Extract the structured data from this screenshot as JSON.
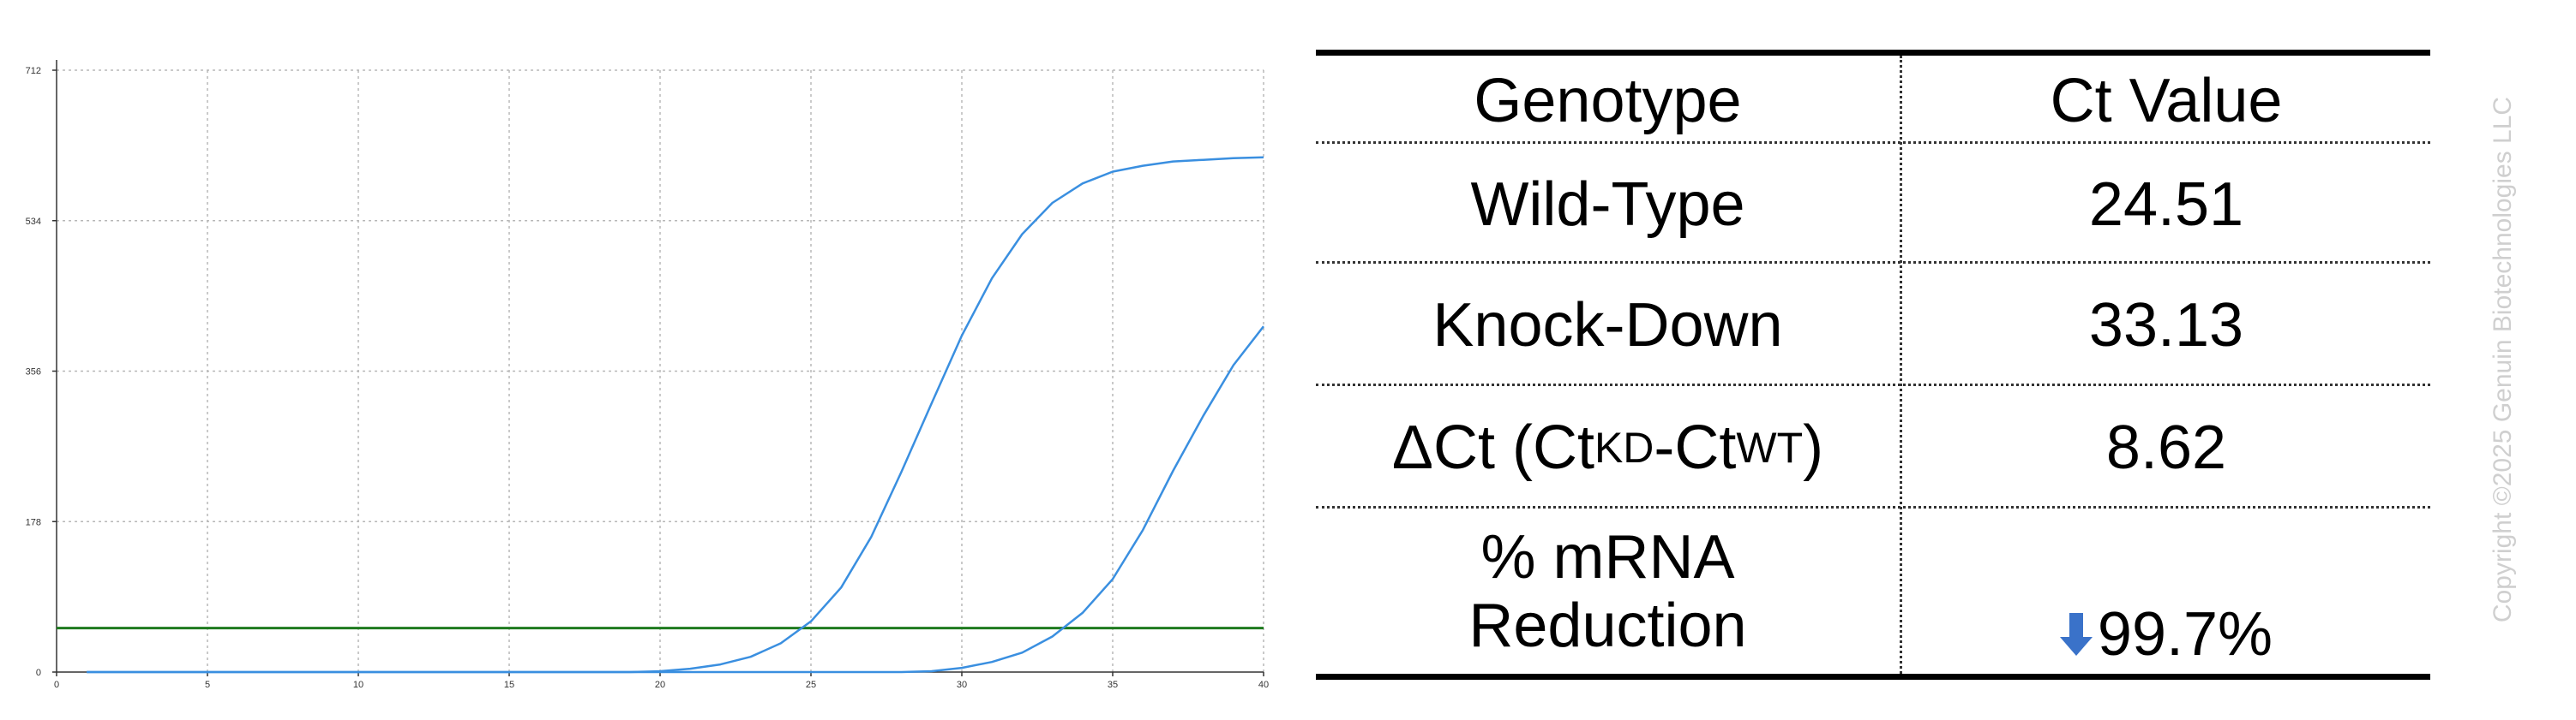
{
  "chart_data": {
    "type": "line",
    "title": "",
    "xlabel": "",
    "ylabel": "",
    "xlim": [
      0,
      40
    ],
    "ylim": [
      0,
      712
    ],
    "x_ticks": [
      0,
      5,
      10,
      15,
      20,
      25,
      30,
      35,
      40
    ],
    "y_ticks": [
      0,
      178,
      356,
      534,
      712
    ],
    "grid": true,
    "threshold": 52,
    "colors": {
      "series": "#3a8fe0",
      "threshold": "#1e7a1e",
      "grid": "#b8b8b8",
      "axis": "#333333"
    },
    "series": [
      {
        "x": [
          1,
          19,
          20,
          21,
          22,
          23,
          24,
          25,
          26,
          27,
          28,
          29,
          30,
          31,
          32,
          33,
          34,
          35,
          36,
          37,
          38,
          39,
          40
        ],
        "values": [
          0,
          0,
          1,
          4,
          9,
          18,
          34,
          60,
          100,
          160,
          237,
          318,
          398,
          466,
          518,
          555,
          578,
          592,
          599,
          604,
          606,
          608,
          609
        ]
      },
      {
        "x": [
          1,
          28,
          29,
          30,
          31,
          32,
          33,
          34,
          35,
          36,
          37,
          38,
          39,
          40
        ],
        "values": [
          0,
          0,
          1,
          5,
          12,
          23,
          42,
          70,
          110,
          168,
          238,
          303,
          363,
          409
        ]
      }
    ]
  },
  "table": {
    "headers": {
      "genotype": "Genotype",
      "ct": "Ct Value"
    },
    "rows": [
      {
        "label": "Wild-Type",
        "value": "24.51"
      },
      {
        "label": "Knock-Down",
        "value": "33.13"
      }
    ],
    "delta": {
      "lead": "ΔCt (Ct",
      "sub_kd": "KD",
      "mid": "-Ct",
      "sub_wt": "WT",
      "close": ")",
      "value": "8.62"
    },
    "reduction": {
      "label_line1": "% mRNA",
      "label_line2": "Reduction",
      "value": "99.7%",
      "arrow_icon": "down-arrow-icon",
      "arrow_color": "#3a72c9"
    }
  },
  "watermark": "Copyright ©2025 Genuin Biotechnologies LLC"
}
